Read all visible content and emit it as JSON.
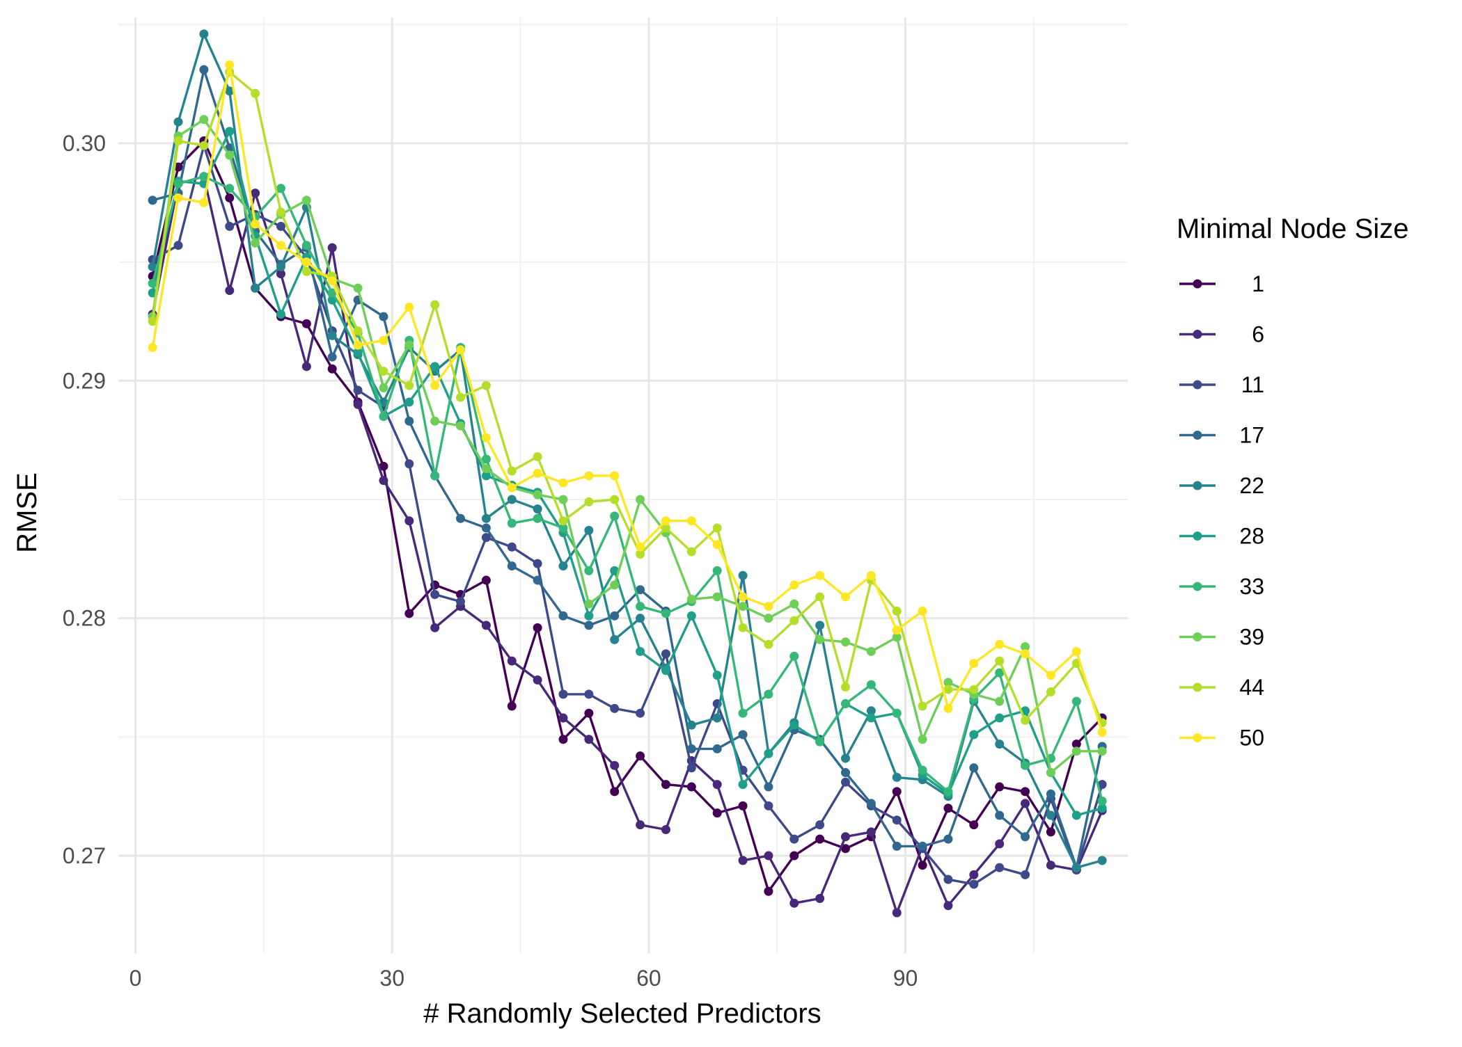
{
  "chart_data": {
    "type": "line",
    "title": "",
    "xlabel": "# Randomly Selected Predictors",
    "ylabel": "RMSE",
    "xlim": [
      -2,
      116
    ],
    "ylim": [
      0.2659,
      0.3053
    ],
    "x_ticks": [
      0,
      30,
      60,
      90
    ],
    "x_tick_labels": [
      "0",
      "30",
      "60",
      "90"
    ],
    "x_minor_ticks": [
      15,
      45,
      75,
      105
    ],
    "y_ticks": [
      0.27,
      0.28,
      0.29,
      0.3
    ],
    "y_tick_labels": [
      "0.27",
      "0.28",
      "0.29",
      "0.30"
    ],
    "y_minor_ticks": [
      0.275,
      0.285,
      0.295,
      0.305
    ],
    "grid": true,
    "legend": {
      "title": "Minimal Node Size",
      "position": "right"
    },
    "x": [
      2,
      5,
      8,
      11,
      14,
      17,
      20,
      23,
      26,
      29,
      32,
      35,
      38,
      41,
      44,
      47,
      50,
      53,
      56,
      59,
      62,
      65,
      68,
      71,
      74,
      77,
      80,
      83,
      86,
      89,
      92,
      95,
      98,
      101,
      104,
      107,
      110,
      113
    ],
    "series": [
      {
        "name": "1",
        "color": "#440154",
        "values": [
          0.2944,
          0.299,
          0.3001,
          0.2977,
          0.2939,
          0.2927,
          0.2924,
          0.2905,
          0.2891,
          0.2864,
          0.2802,
          0.2814,
          0.281,
          0.2816,
          0.2763,
          0.2796,
          0.2749,
          0.276,
          0.2727,
          0.2742,
          0.273,
          0.2729,
          0.2718,
          0.2721,
          0.2685,
          0.27,
          0.2707,
          0.2703,
          0.2708,
          0.2727,
          0.2696,
          0.272,
          0.2713,
          0.2729,
          0.2727,
          0.271,
          0.2747,
          0.2758
        ]
      },
      {
        "name": "6",
        "color": "#482878",
        "values": [
          0.2928,
          0.2983,
          0.2986,
          0.2938,
          0.2979,
          0.2945,
          0.2906,
          0.2956,
          0.289,
          0.2858,
          0.2841,
          0.2796,
          0.2805,
          0.2797,
          0.2782,
          0.2774,
          0.2758,
          0.2749,
          0.2738,
          0.2713,
          0.2711,
          0.274,
          0.273,
          0.2698,
          0.27,
          0.268,
          0.2682,
          0.2708,
          0.271,
          0.2676,
          0.2704,
          0.2679,
          0.2692,
          0.2705,
          0.2722,
          0.2696,
          0.2694,
          0.2719
        ]
      },
      {
        "name": "11",
        "color": "#3e4989",
        "values": [
          0.2951,
          0.2957,
          0.2999,
          0.2965,
          0.297,
          0.2965,
          0.2952,
          0.2921,
          0.2896,
          0.2889,
          0.2865,
          0.281,
          0.2807,
          0.2834,
          0.283,
          0.2823,
          0.2768,
          0.2768,
          0.2762,
          0.276,
          0.2785,
          0.2737,
          0.2764,
          0.2736,
          0.2721,
          0.2707,
          0.2713,
          0.2731,
          0.2721,
          0.2715,
          0.2703,
          0.269,
          0.2688,
          0.2695,
          0.2692,
          0.2724,
          0.2694,
          0.273
        ]
      },
      {
        "name": "17",
        "color": "#31688e",
        "values": [
          0.2976,
          0.2979,
          0.3031,
          0.2998,
          0.2963,
          0.2949,
          0.2956,
          0.291,
          0.2934,
          0.2927,
          0.2883,
          0.286,
          0.2842,
          0.2838,
          0.2822,
          0.2816,
          0.2801,
          0.2797,
          0.2801,
          0.2812,
          0.2803,
          0.2745,
          0.2745,
          0.2751,
          0.2729,
          0.2753,
          0.2749,
          0.2735,
          0.2722,
          0.2704,
          0.2704,
          0.2707,
          0.2737,
          0.2717,
          0.2708,
          0.2726,
          0.2695,
          0.2746
        ]
      },
      {
        "name": "22",
        "color": "#26828e",
        "values": [
          0.2948,
          0.3009,
          0.3046,
          0.3022,
          0.2939,
          0.2948,
          0.2973,
          0.2919,
          0.2911,
          0.2891,
          0.2914,
          0.2904,
          0.2913,
          0.2842,
          0.285,
          0.2846,
          0.2822,
          0.2837,
          0.2791,
          0.28,
          0.2779,
          0.2755,
          0.2758,
          0.2818,
          0.2743,
          0.2756,
          0.2797,
          0.2741,
          0.2761,
          0.2733,
          0.2732,
          0.2725,
          0.2765,
          0.2747,
          0.2739,
          0.2717,
          0.2695,
          0.2698
        ]
      },
      {
        "name": "28",
        "color": "#1f9e89",
        "values": [
          0.2937,
          0.2984,
          0.2983,
          0.3005,
          0.2961,
          0.2928,
          0.2952,
          0.2934,
          0.2912,
          0.2885,
          0.2891,
          0.2906,
          0.2882,
          0.286,
          0.2856,
          0.2853,
          0.2836,
          0.2801,
          0.282,
          0.2786,
          0.2778,
          0.2801,
          0.2776,
          0.273,
          0.2743,
          0.2755,
          0.2748,
          0.2764,
          0.2758,
          0.276,
          0.2734,
          0.2726,
          0.2751,
          0.2758,
          0.2761,
          0.2735,
          0.2717,
          0.272
        ]
      },
      {
        "name": "33",
        "color": "#35b779",
        "values": [
          0.2941,
          0.2983,
          0.2986,
          0.2981,
          0.2969,
          0.2981,
          0.2957,
          0.2937,
          0.292,
          0.2885,
          0.2917,
          0.286,
          0.2914,
          0.2867,
          0.284,
          0.2842,
          0.2838,
          0.282,
          0.2843,
          0.2805,
          0.2802,
          0.2807,
          0.282,
          0.276,
          0.2768,
          0.2784,
          0.2748,
          0.2764,
          0.2772,
          0.276,
          0.2736,
          0.2727,
          0.2766,
          0.2777,
          0.2738,
          0.2741,
          0.2765,
          0.2723
        ]
      },
      {
        "name": "39",
        "color": "#6ece58",
        "values": [
          0.2927,
          0.3003,
          0.301,
          0.2995,
          0.2958,
          0.297,
          0.2976,
          0.2943,
          0.2939,
          0.2897,
          0.2915,
          0.2883,
          0.2881,
          0.2863,
          0.2855,
          0.2852,
          0.285,
          0.2806,
          0.2814,
          0.285,
          0.2836,
          0.2808,
          0.2809,
          0.2805,
          0.28,
          0.2806,
          0.2791,
          0.279,
          0.2786,
          0.2792,
          0.2749,
          0.2773,
          0.2768,
          0.2765,
          0.2788,
          0.2735,
          0.2744,
          0.2744
        ]
      },
      {
        "name": "44",
        "color": "#b5de2b",
        "values": [
          0.2925,
          0.3001,
          0.2999,
          0.303,
          0.3021,
          0.2971,
          0.2946,
          0.2944,
          0.2921,
          0.2904,
          0.2898,
          0.2932,
          0.2893,
          0.2898,
          0.2862,
          0.2868,
          0.2841,
          0.2849,
          0.285,
          0.2827,
          0.2838,
          0.2828,
          0.2838,
          0.2796,
          0.2789,
          0.2799,
          0.2809,
          0.2771,
          0.2816,
          0.2803,
          0.2763,
          0.277,
          0.277,
          0.2782,
          0.2757,
          0.2769,
          0.2781,
          0.2756
        ]
      },
      {
        "name": "50",
        "color": "#fde725",
        "values": [
          0.2914,
          0.2977,
          0.2975,
          0.3033,
          0.2966,
          0.2957,
          0.295,
          0.2942,
          0.2915,
          0.2917,
          0.2931,
          0.2898,
          0.2913,
          0.2876,
          0.2855,
          0.2861,
          0.2857,
          0.286,
          0.286,
          0.283,
          0.2841,
          0.2841,
          0.2831,
          0.2809,
          0.2805,
          0.2814,
          0.2818,
          0.2809,
          0.2818,
          0.2795,
          0.2803,
          0.2762,
          0.2781,
          0.2789,
          0.2785,
          0.2776,
          0.2786,
          0.2752
        ]
      }
    ]
  }
}
